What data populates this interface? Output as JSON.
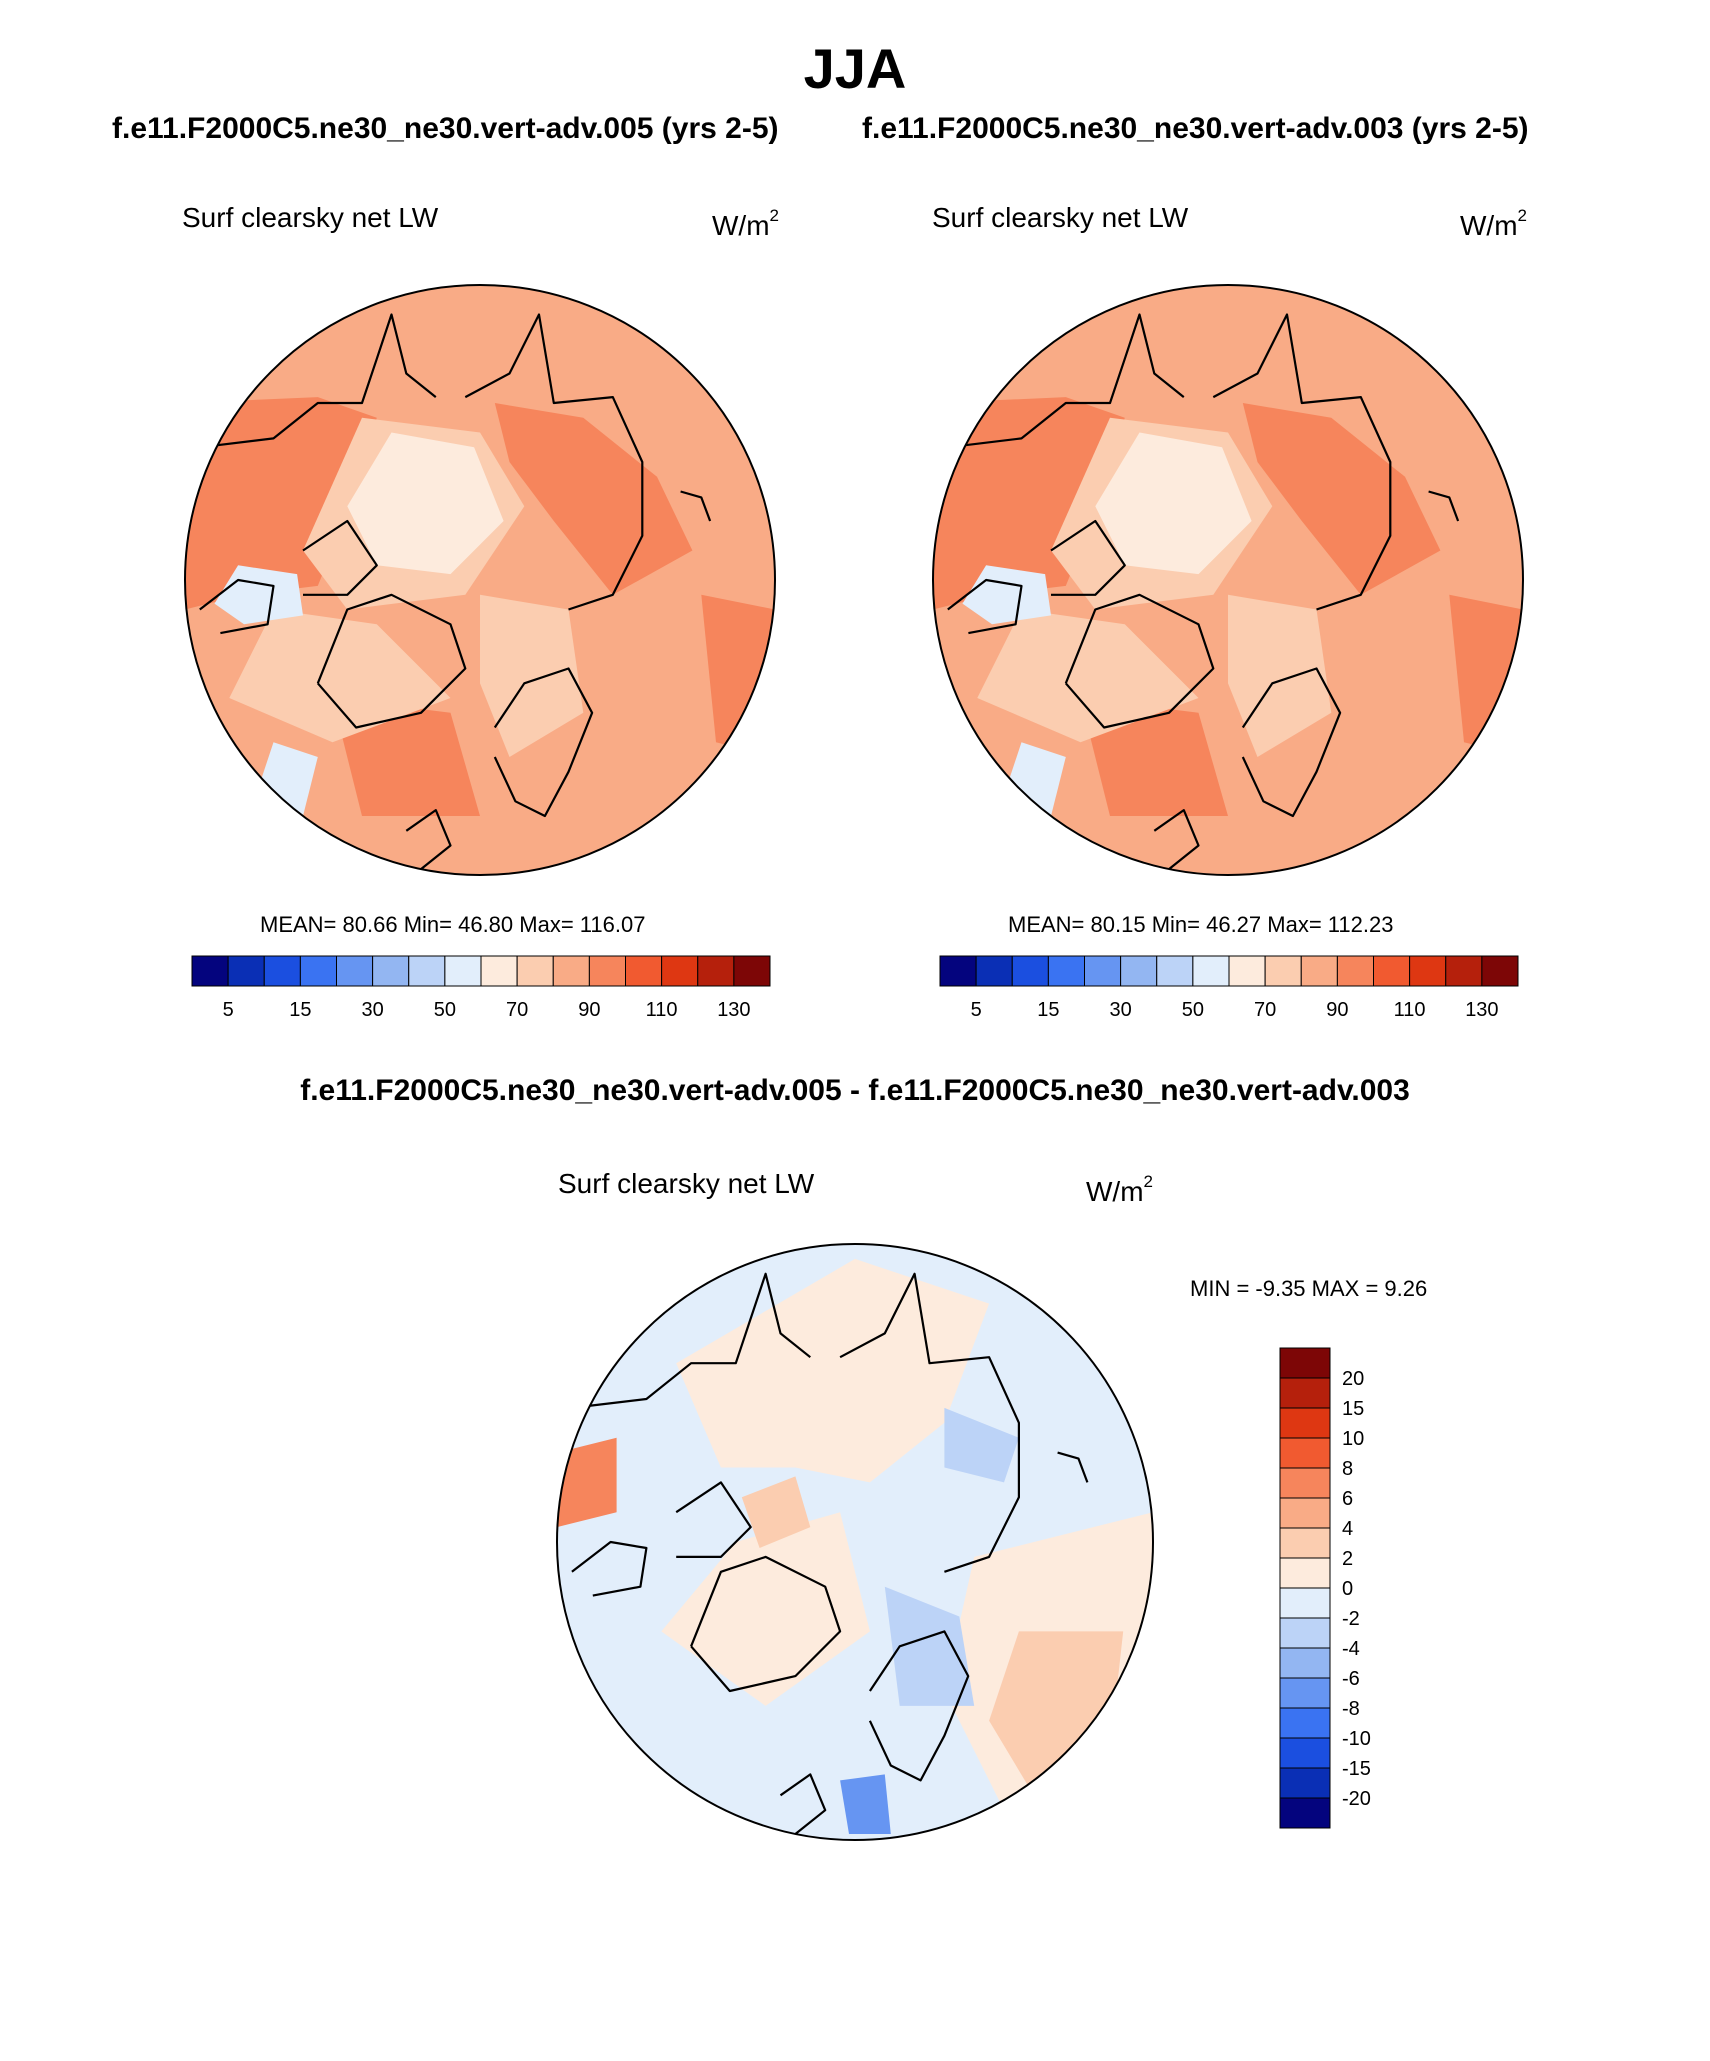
{
  "season": "JJA",
  "case_a_header": "f.e11.F2000C5.ne30_ne30.vert-adv.005 (yrs 2-5)",
  "case_b_header": "f.e11.F2000C5.ne30_ne30.vert-adv.003 (yrs 2-5)",
  "difference_header": "f.e11.F2000C5.ne30_ne30.vert-adv.005 - f.e11.F2000C5.ne30_ne30.vert-adv.003",
  "variable": "Surf clearsky net LW",
  "units_base": "W/m",
  "units_exp": "2",
  "panels": [
    {
      "id": "case-a",
      "mean": "80.66",
      "min": "46.80",
      "max": "116.07",
      "stats_text": "MEAN=  80.66  Min=  46.80  Max= 116.07"
    },
    {
      "id": "case-b",
      "mean": "80.15",
      "min": "46.27",
      "max": "112.23",
      "stats_text": "MEAN=  80.15  Min=  46.27  Max= 112.23"
    }
  ],
  "difference": {
    "min": "-9.35",
    "max": "9.26",
    "stats_text": "MIN =  -9.35 MAX =   9.26"
  },
  "abs_colorbar": {
    "labels": [
      "5",
      "15",
      "30",
      "50",
      "70",
      "90",
      "110",
      "130"
    ],
    "colors": [
      "#04047e",
      "#0a2fb5",
      "#1b4fe0",
      "#3a73f2",
      "#6695f2",
      "#93b6f2",
      "#bcd3f7",
      "#e2eefb",
      "#fdebdd",
      "#fbcdb0",
      "#f9ab86",
      "#f6855c",
      "#f15a30",
      "#de3712",
      "#b5200c",
      "#7d0606"
    ]
  },
  "diff_colorbar": {
    "labels": [
      "20",
      "15",
      "10",
      "8",
      "6",
      "4",
      "2",
      "0",
      "-2",
      "-4",
      "-6",
      "-8",
      "-10",
      "-15",
      "-20"
    ],
    "colors": [
      "#7d0606",
      "#b5200c",
      "#de3712",
      "#f15a30",
      "#f6855c",
      "#f9ab86",
      "#fbcdb0",
      "#fdebdd",
      "#e2eefb",
      "#bcd3f7",
      "#93b6f2",
      "#6695f2",
      "#3a73f2",
      "#1b4fe0",
      "#0a2fb5",
      "#04047e"
    ]
  },
  "field_colors": {
    "abs_base": "#f9ab86",
    "abs_high": "#f6855c",
    "abs_low": "#fbcdb0",
    "abs_lowest": "#fdebdd",
    "abs_cold": "#e2eefb",
    "diff_neutral_pos": "#fdebdd",
    "diff_neutral_neg": "#e2eefb",
    "diff_pos": "#fbcdb0",
    "diff_neg": "#bcd3f7",
    "diff_strong_pos": "#f6855c",
    "diff_strong_neg": "#6695f2"
  }
}
